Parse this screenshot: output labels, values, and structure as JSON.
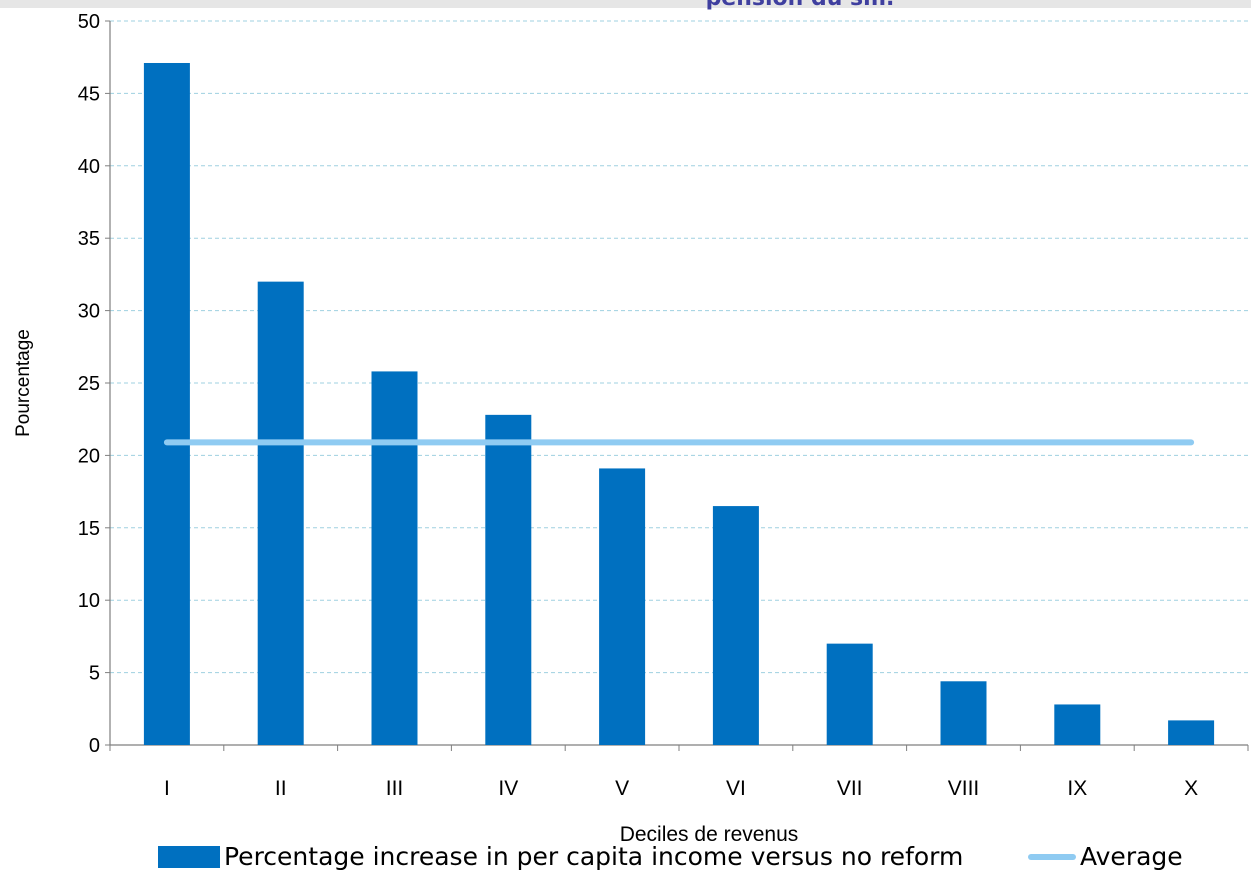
{
  "chart_data": {
    "type": "bar",
    "title": "pension du sm.",
    "xlabel": "Deciles de revenus",
    "ylabel": "Pourcentage",
    "categories": [
      "I",
      "II",
      "III",
      "IV",
      "V",
      "VI",
      "VII",
      "VIII",
      "IX",
      "X"
    ],
    "series": [
      {
        "name": "Percentage increase in per capita income versus no reform",
        "type": "bar",
        "color": "#0070c0",
        "values": [
          47.1,
          32.0,
          25.8,
          22.8,
          19.1,
          16.5,
          7.0,
          4.4,
          2.8,
          1.7
        ]
      },
      {
        "name": "Average",
        "type": "line",
        "color": "#8fcbf2",
        "value": 20.9
      }
    ],
    "ylim": [
      0,
      50
    ],
    "yticks": [
      "0",
      "5",
      "10",
      "15",
      "20",
      "25",
      "30",
      "35",
      "40",
      "45",
      "50"
    ],
    "grid": true,
    "legend": "bottom"
  }
}
